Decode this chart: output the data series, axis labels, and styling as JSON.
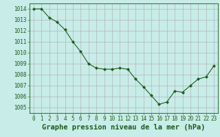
{
  "x": [
    0,
    1,
    2,
    3,
    4,
    5,
    6,
    7,
    8,
    9,
    10,
    11,
    12,
    13,
    14,
    15,
    16,
    17,
    18,
    19,
    20,
    21,
    22,
    23
  ],
  "y": [
    1014.0,
    1014.0,
    1013.2,
    1012.8,
    1012.1,
    1011.0,
    1010.1,
    1009.0,
    1008.6,
    1008.5,
    1008.5,
    1008.6,
    1008.5,
    1007.6,
    1006.9,
    1006.1,
    1005.3,
    1005.5,
    1006.5,
    1006.4,
    1007.0,
    1007.6,
    1007.8,
    1008.8
  ],
  "line_color": "#1a5c1a",
  "marker": "D",
  "marker_size": 2.2,
  "bg_color": "#c8ece8",
  "grid_color": "#aaaaaa",
  "ylabel_ticks": [
    1005,
    1006,
    1007,
    1008,
    1009,
    1010,
    1011,
    1012,
    1013,
    1014
  ],
  "xlabel_ticks": [
    0,
    1,
    2,
    3,
    4,
    5,
    6,
    7,
    8,
    9,
    10,
    11,
    12,
    13,
    14,
    15,
    16,
    17,
    18,
    19,
    20,
    21,
    22,
    23
  ],
  "ylim": [
    1004.5,
    1014.5
  ],
  "xlim": [
    -0.5,
    23.5
  ],
  "xlabel": "Graphe pression niveau de la mer (hPa)",
  "tick_fontsize": 5.5,
  "label_fontsize": 7.5,
  "tick_color": "#1a5c1a",
  "label_color": "#1a5c1a",
  "spine_color": "#3a7a3a"
}
